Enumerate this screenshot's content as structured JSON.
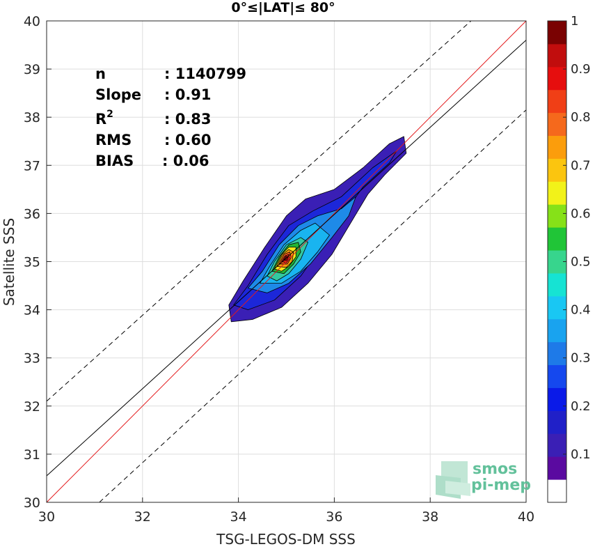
{
  "chart_data": {
    "type": "contour-scatter",
    "title": "0°≤|LAT|≤ 80°",
    "xlabel": "TSG-LEGOS-DM SSS",
    "ylabel": "Satellite SSS",
    "xlim": [
      30,
      40
    ],
    "ylim": [
      30,
      40
    ],
    "xticks": [
      "30",
      "32",
      "34",
      "36",
      "38",
      "40"
    ],
    "yticks": [
      "30",
      "31",
      "32",
      "33",
      "34",
      "35",
      "36",
      "37",
      "38",
      "39",
      "40"
    ],
    "grid": true,
    "stats": {
      "n_label": "n",
      "n_value": ": 1140799",
      "slope_label": "Slope",
      "slope_value": ": 0.91",
      "r2_label": "R",
      "r2_sup": "2",
      "r2_value": ": 0.83",
      "rms_label": "RMS",
      "rms_value": ": 0.60",
      "bias_label": "BIAS",
      "bias_value": ": 0.06"
    },
    "lines": {
      "identity": {
        "x": [
          30,
          40
        ],
        "y": [
          30,
          40
        ],
        "color": "#e31a1c"
      },
      "fit": {
        "x": [
          30,
          40
        ],
        "y": [
          30.55,
          39.6
        ],
        "color": "#000000"
      },
      "upper_bound": {
        "x": [
          30,
          38.85
        ],
        "y": [
          32.1,
          40
        ],
        "color": "#000000",
        "style": "dashed"
      },
      "lower_bound": {
        "x": [
          31.1,
          40
        ],
        "y": [
          30,
          38.15
        ],
        "color": "#000000",
        "style": "dashed"
      }
    },
    "density_peak": {
      "x": 35.0,
      "y": 35.05
    },
    "contours": [
      {
        "level": 0.05,
        "color": "#3a1fb5",
        "points": [
          [
            33.85,
            33.75
          ],
          [
            33.8,
            34.1
          ],
          [
            34.1,
            34.6
          ],
          [
            34.55,
            35.3
          ],
          [
            35.0,
            35.95
          ],
          [
            35.4,
            36.3
          ],
          [
            36.0,
            36.5
          ],
          [
            36.6,
            36.95
          ],
          [
            37.15,
            37.45
          ],
          [
            37.45,
            37.6
          ],
          [
            37.5,
            37.25
          ],
          [
            37.05,
            36.8
          ],
          [
            36.7,
            36.4
          ],
          [
            36.4,
            35.9
          ],
          [
            35.95,
            35.15
          ],
          [
            35.45,
            34.55
          ],
          [
            34.9,
            34.05
          ],
          [
            34.3,
            33.8
          ]
        ]
      },
      {
        "level": 0.1,
        "color": "#1c27d9",
        "points": [
          [
            33.9,
            34.1
          ],
          [
            34.2,
            34.5
          ],
          [
            34.6,
            35.15
          ],
          [
            35.05,
            35.75
          ],
          [
            35.55,
            36.05
          ],
          [
            36.15,
            36.35
          ],
          [
            36.8,
            36.95
          ],
          [
            37.3,
            37.3
          ],
          [
            37.15,
            37.05
          ],
          [
            36.6,
            36.55
          ],
          [
            36.2,
            36.0
          ],
          [
            35.8,
            35.4
          ],
          [
            35.3,
            34.7
          ],
          [
            34.75,
            34.2
          ],
          [
            34.2,
            34.0
          ]
        ]
      },
      {
        "level": 0.15,
        "color": "#1e8ae8",
        "points": [
          [
            34.2,
            34.45
          ],
          [
            34.5,
            34.8
          ],
          [
            34.85,
            35.35
          ],
          [
            35.25,
            35.75
          ],
          [
            35.65,
            35.95
          ],
          [
            36.15,
            36.1
          ],
          [
            36.45,
            36.35
          ],
          [
            36.3,
            35.95
          ],
          [
            35.95,
            35.5
          ],
          [
            35.5,
            34.95
          ],
          [
            35.05,
            34.55
          ],
          [
            34.6,
            34.35
          ]
        ]
      },
      {
        "level": 0.25,
        "color": "#19b4f0",
        "points": [
          [
            34.45,
            34.55
          ],
          [
            34.65,
            34.9
          ],
          [
            34.95,
            35.35
          ],
          [
            35.3,
            35.65
          ],
          [
            35.6,
            35.8
          ],
          [
            35.9,
            35.55
          ],
          [
            35.65,
            35.2
          ],
          [
            35.3,
            34.8
          ],
          [
            34.9,
            34.55
          ]
        ]
      },
      {
        "level": 0.4,
        "color": "#33c9a0",
        "points": [
          [
            34.6,
            34.7
          ],
          [
            34.75,
            35.0
          ],
          [
            35.0,
            35.35
          ],
          [
            35.3,
            35.5
          ],
          [
            35.45,
            35.4
          ],
          [
            35.3,
            35.05
          ],
          [
            35.05,
            34.75
          ],
          [
            34.8,
            34.6
          ]
        ]
      },
      {
        "level": 0.5,
        "color": "#22b535",
        "points": [
          [
            34.7,
            34.8
          ],
          [
            34.85,
            35.1
          ],
          [
            35.05,
            35.35
          ],
          [
            35.25,
            35.4
          ],
          [
            35.3,
            35.2
          ],
          [
            35.15,
            34.95
          ],
          [
            34.95,
            34.75
          ]
        ]
      },
      {
        "level": 0.6,
        "color": "#f2e61a",
        "points": [
          [
            34.75,
            34.85
          ],
          [
            34.9,
            35.15
          ],
          [
            35.05,
            35.3
          ],
          [
            35.2,
            35.3
          ],
          [
            35.2,
            35.1
          ],
          [
            35.05,
            34.9
          ],
          [
            34.9,
            34.8
          ]
        ]
      },
      {
        "level": 0.7,
        "color": "#fb9d0c",
        "points": [
          [
            34.8,
            34.9
          ],
          [
            34.92,
            35.15
          ],
          [
            35.05,
            35.25
          ],
          [
            35.15,
            35.2
          ],
          [
            35.12,
            35.0
          ],
          [
            35.0,
            34.88
          ]
        ]
      },
      {
        "level": 0.8,
        "color": "#f5591c",
        "points": [
          [
            34.85,
            34.95
          ],
          [
            34.95,
            35.15
          ],
          [
            35.07,
            35.2
          ],
          [
            35.1,
            35.08
          ],
          [
            35.02,
            34.95
          ]
        ]
      },
      {
        "level": 0.9,
        "color": "#e51c17",
        "points": [
          [
            34.9,
            35.0
          ],
          [
            34.97,
            35.12
          ],
          [
            35.05,
            35.15
          ],
          [
            35.06,
            35.05
          ],
          [
            35.0,
            34.98
          ]
        ]
      },
      {
        "level": 1.0,
        "color": "#970a0a",
        "points": [
          [
            34.94,
            35.03
          ],
          [
            34.99,
            35.11
          ],
          [
            35.03,
            35.1
          ],
          [
            35.02,
            35.03
          ]
        ]
      }
    ],
    "colorbar": {
      "ticks": [
        "0.1",
        "0.2",
        "0.3",
        "0.4",
        "0.5",
        "0.6",
        "0.7",
        "0.8",
        "0.9",
        "1"
      ],
      "colors": [
        "#ffffff",
        "#5a0aa0",
        "#3a1fb5",
        "#2020c8",
        "#0a1ae8",
        "#1548ee",
        "#1e7ae8",
        "#19a3ef",
        "#19c7f3",
        "#16e3d3",
        "#37d58d",
        "#20c537",
        "#86e118",
        "#f2f219",
        "#fbc50f",
        "#fb9d0c",
        "#f5691c",
        "#f03f16",
        "#e60e0e",
        "#c10d0d",
        "#7a0202"
      ]
    },
    "watermark": {
      "line1": "smos",
      "line2": "pi-mep"
    }
  }
}
